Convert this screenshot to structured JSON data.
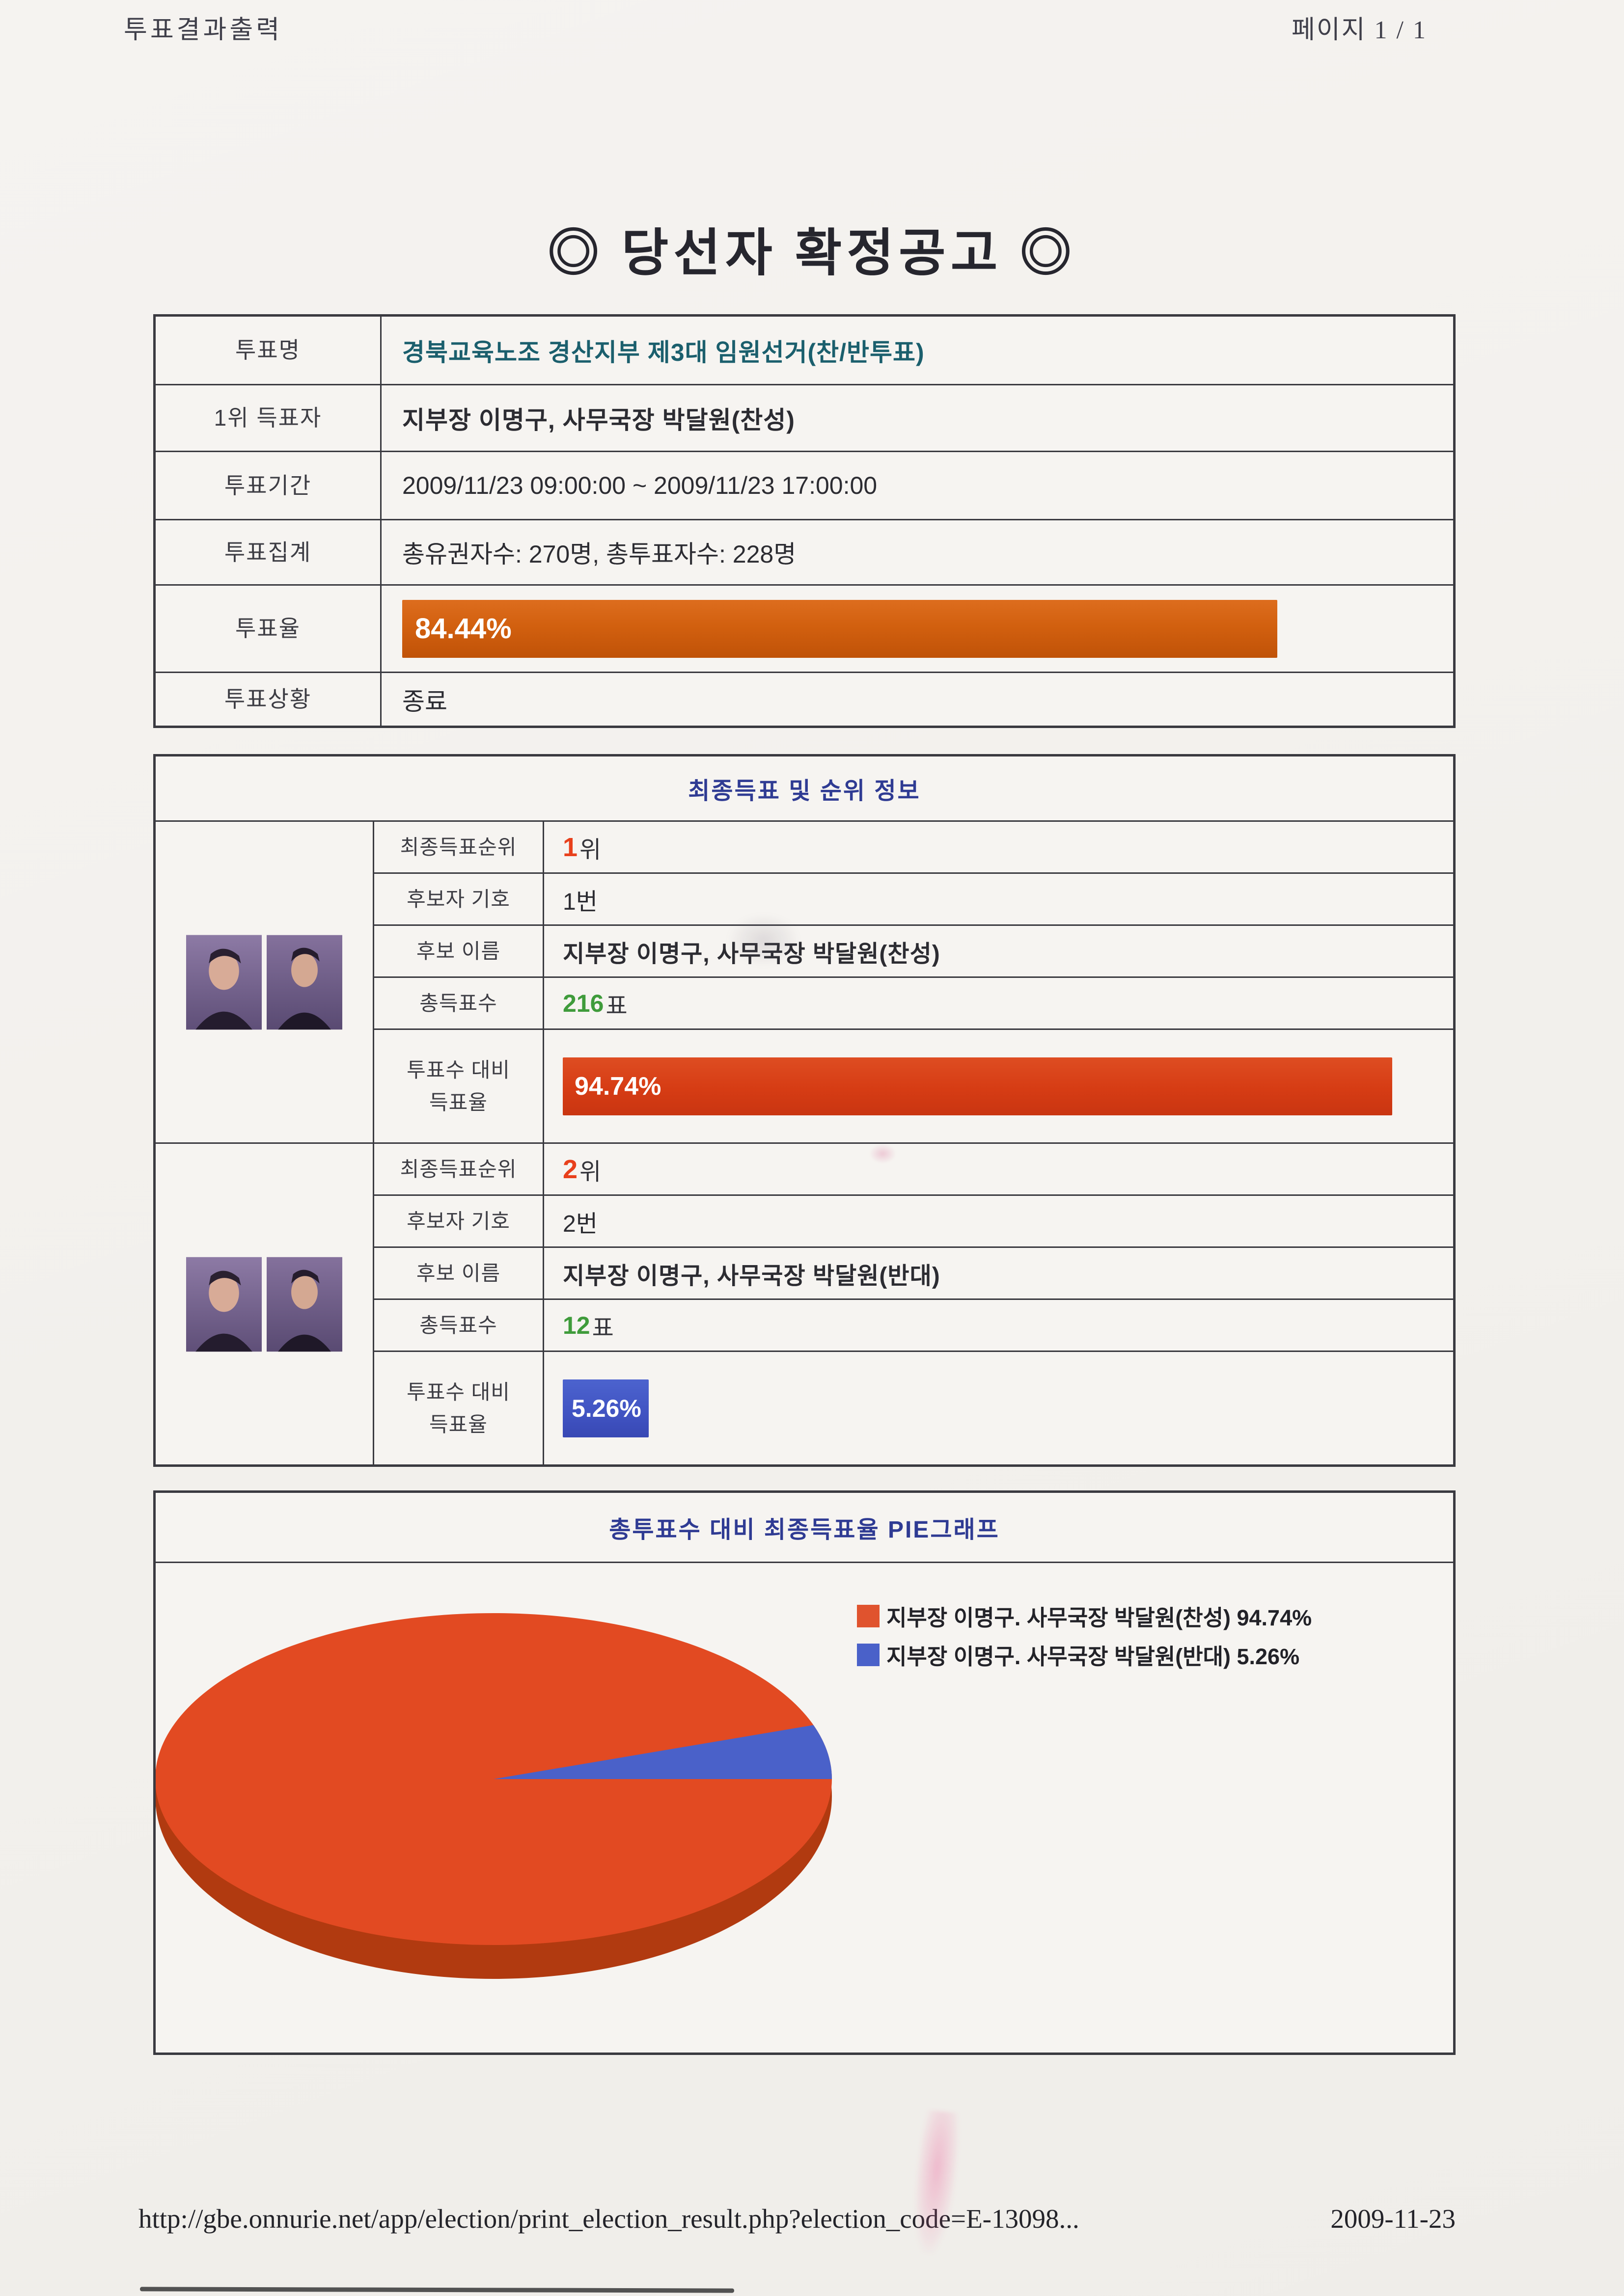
{
  "page": {
    "header_left": "투표결과출력",
    "header_right": "페이지 1 / 1",
    "title": "◎ 당선자 확정공고 ◎"
  },
  "summary": {
    "rows": [
      {
        "label": "투표명",
        "value": "경북교육노조 경산지부 제3대 임원선거(찬/반투표)"
      },
      {
        "label": "1위 득표자",
        "value": "지부장 이명구, 사무국장 박달원(찬성)"
      },
      {
        "label": "투표기간",
        "value": "2009/11/23 09:00:00 ~ 2009/11/23 17:00:00"
      },
      {
        "label": "투표집계",
        "value": "총유권자수: 270명, 총투표자수: 228명"
      }
    ],
    "turnout_label": "투표율",
    "turnout_percent": 84.44,
    "turnout_text": "84.44%",
    "status_label": "투표상황",
    "status_value": "종료"
  },
  "results": {
    "section_title": "최종득표 및 순위 정보",
    "labels": {
      "rank": "최종득표순위",
      "number": "후보자 기호",
      "name": "후보 이름",
      "votes": "총득표수",
      "rate_line1": "투표수 대비",
      "rate_line2": "득표율"
    },
    "candidates": [
      {
        "rank_num": "1",
        "rank_suffix": "위",
        "number": "1번",
        "name": "지부장 이명구, 사무국장 박달원(찬성)",
        "votes_num": "216",
        "votes_suffix": "표",
        "rate_percent": 94.74,
        "rate_text": "94.74%"
      },
      {
        "rank_num": "2",
        "rank_suffix": "위",
        "number": "2번",
        "name": "지부장 이명구, 사무국장 박달원(반대)",
        "votes_num": "12",
        "votes_suffix": "표",
        "rate_percent": 5.26,
        "rate_text": "5.26%"
      }
    ]
  },
  "pie_section": {
    "title": "총투표수 대비 최종득표율 PIE그래프",
    "legend": [
      {
        "label": "지부장 이명구. 사무국장 박달원(찬성) 94.74%",
        "color": "#e0532e"
      },
      {
        "label": "지부장 이명구. 사무국장 박달원(반대) 5.26%",
        "color": "#4a61c9"
      }
    ]
  },
  "chart_data": [
    {
      "type": "bar",
      "title": "투표율",
      "categories": [
        "투표율"
      ],
      "values": [
        84.44
      ],
      "unit": "%",
      "annotation": "총유권자수: 270명, 총투표자수: 228명",
      "bar_color": "#d2600f"
    },
    {
      "type": "bar",
      "title": "투표수 대비 득표율",
      "categories": [
        "지부장 이명구, 사무국장 박달원(찬성)",
        "지부장 이명구, 사무국장 박달원(반대)"
      ],
      "values": [
        94.74,
        5.26
      ],
      "unit": "%",
      "bar_colors": [
        "#d63c14",
        "#4053c2"
      ],
      "data_labels": [
        "94.74%",
        "5.26%"
      ],
      "extra": {
        "votes": [
          216,
          12
        ],
        "ranks": [
          "1위",
          "2위"
        ],
        "numbers": [
          "1번",
          "2번"
        ]
      }
    },
    {
      "type": "pie",
      "title": "총투표수 대비 최종득표율 PIE그래프",
      "labels": [
        "지부장 이명구. 사무국장 박달원(찬성)",
        "지부장 이명구. 사무국장 박달원(반대)"
      ],
      "values": [
        94.74,
        5.26
      ],
      "colors": [
        "#e24a22",
        "#4a61c9"
      ],
      "legend_position": "top-right",
      "style": "3d-ellipse"
    }
  ],
  "footer": {
    "url": "http://gbe.onnurie.net/app/election/print_election_result.php?election_code=E-13098...",
    "date": "2009-11-23"
  },
  "colors": {
    "turnout_bar": "#d2600f",
    "winner_bar": "#d63c14",
    "loser_bar": "#4053c2",
    "pie_main": "#e24a22",
    "pie_rim": "#b13a10",
    "pie_minor": "#4a61c9",
    "section_title": "#2f3b93",
    "rank_number": "#e8401c",
    "votes_number": "#3f9b3b",
    "vote_name_text": "#1b5f6d"
  }
}
